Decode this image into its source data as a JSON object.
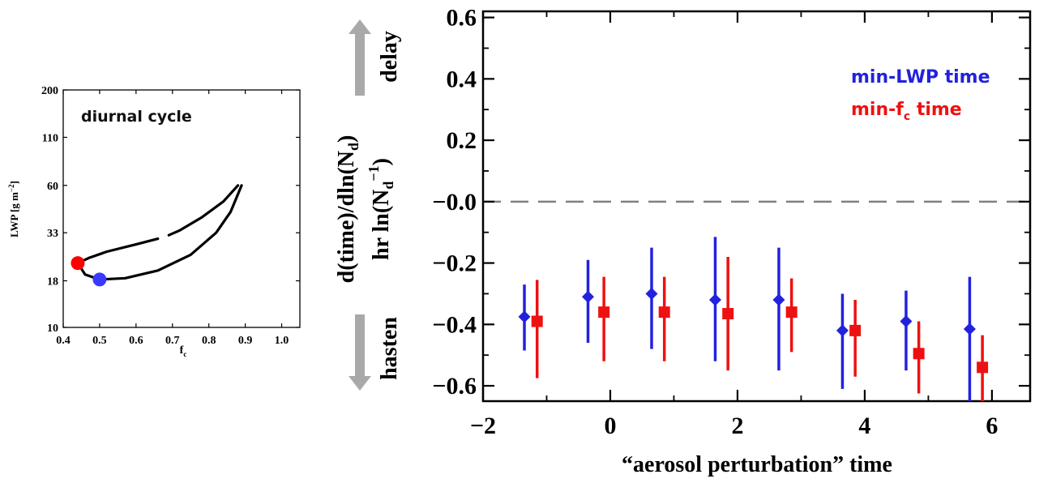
{
  "chart_data": [
    {
      "type": "line",
      "title": "",
      "annotation": "diurnal cycle",
      "xlabel_main": "f",
      "xlabel_sub": "c",
      "ylabel": "LWP [g m",
      "ylabel_sup": "−2",
      "ylabel_end": "]",
      "xlim": [
        0.4,
        1.05
      ],
      "ylim_log": [
        10,
        200
      ],
      "xticks": [
        {
          "v": 0.4,
          "label": "0.4"
        },
        {
          "v": 0.5,
          "label": "0.5"
        },
        {
          "v": 0.6,
          "label": "0.6"
        },
        {
          "v": 0.7,
          "label": "0.7"
        },
        {
          "v": 0.8,
          "label": "0.8"
        },
        {
          "v": 0.9,
          "label": "0.9"
        },
        {
          "v": 1.0,
          "label": "1.0"
        }
      ],
      "yticks": [
        {
          "v": 10,
          "label": "10"
        },
        {
          "v": 18,
          "label": "18"
        },
        {
          "v": 33,
          "label": "33"
        },
        {
          "v": 60,
          "label": "60"
        },
        {
          "v": 110,
          "label": "110"
        },
        {
          "v": 200,
          "label": "200"
        }
      ],
      "series": [
        {
          "color": "#000000",
          "segments": [
            [
              [
                0.88,
                60
              ],
              [
                0.84,
                49
              ],
              [
                0.78,
                40
              ],
              [
                0.72,
                34
              ],
              [
                0.69,
                32
              ]
            ],
            [
              [
                0.66,
                30.6
              ],
              [
                0.6,
                28.5
              ],
              [
                0.52,
                26
              ],
              [
                0.47,
                24
              ],
              [
                0.44,
                22.5
              ]
            ],
            [
              [
                0.44,
                22.5
              ],
              [
                0.46,
                19.5
              ],
              [
                0.5,
                18.3
              ],
              [
                0.57,
                18.6
              ],
              [
                0.66,
                20.5
              ],
              [
                0.75,
                25
              ],
              [
                0.82,
                33
              ],
              [
                0.86,
                43
              ],
              [
                0.89,
                60
              ]
            ]
          ]
        }
      ],
      "markers": [
        {
          "x": 0.44,
          "y": 22.5,
          "color": "#ff0000"
        },
        {
          "x": 0.5,
          "y": 18.3,
          "color": "#3a3aff"
        }
      ]
    },
    {
      "type": "scatter",
      "title": "",
      "xlabel": "“aerosol perturbation” time",
      "ylabel_line1": "d(time)/dln(N",
      "ylabel_line1_sub": "d",
      "ylabel_line1_end": ")",
      "ylabel_line2": "hr ln(N",
      "ylabel_line2_sub": "d",
      "ylabel_line2_sup": "−1",
      "ylabel_line2_end": ")",
      "xlim": [
        -2,
        6.6
      ],
      "ylim": [
        -0.65,
        0.62
      ],
      "xticks": [
        {
          "v": -2,
          "label": "−2"
        },
        {
          "v": 0,
          "label": "0"
        },
        {
          "v": 2,
          "label": "2"
        },
        {
          "v": 4,
          "label": "4"
        },
        {
          "v": 6,
          "label": "6"
        }
      ],
      "yticks": [
        {
          "v": 0.6,
          "label": "0.6"
        },
        {
          "v": 0.4,
          "label": "0.4"
        },
        {
          "v": 0.2,
          "label": "0.2"
        },
        {
          "v": 0.0,
          "label": "−0.0"
        },
        {
          "v": -0.2,
          "label": "−0.2"
        },
        {
          "v": -0.4,
          "label": "−0.4"
        },
        {
          "v": -0.6,
          "label": "−0.6"
        }
      ],
      "reference_line": {
        "y": 0.0,
        "color": "#808080",
        "style": "dashed"
      },
      "series": [
        {
          "name": "min-LWP time",
          "marker": "diamond",
          "color": "#2222dd",
          "points": [
            {
              "x": -1.35,
              "y": -0.375,
              "lo": -0.485,
              "hi": -0.27
            },
            {
              "x": -0.35,
              "y": -0.31,
              "lo": -0.46,
              "hi": -0.19
            },
            {
              "x": 0.65,
              "y": -0.3,
              "lo": -0.48,
              "hi": -0.15
            },
            {
              "x": 1.65,
              "y": -0.32,
              "lo": -0.52,
              "hi": -0.115
            },
            {
              "x": 2.65,
              "y": -0.32,
              "lo": -0.55,
              "hi": -0.15
            },
            {
              "x": 3.65,
              "y": -0.42,
              "lo": -0.61,
              "hi": -0.3
            },
            {
              "x": 4.65,
              "y": -0.39,
              "lo": -0.55,
              "hi": -0.29
            },
            {
              "x": 5.65,
              "y": -0.415,
              "lo": -0.65,
              "hi": -0.245
            }
          ]
        },
        {
          "name": "min-f",
          "name_sub": "c",
          "name_end": " time",
          "marker": "square",
          "color": "#ee1111",
          "points": [
            {
              "x": -1.15,
              "y": -0.39,
              "lo": -0.575,
              "hi": -0.255
            },
            {
              "x": -0.1,
              "y": -0.36,
              "lo": -0.52,
              "hi": -0.245
            },
            {
              "x": 0.85,
              "y": -0.36,
              "lo": -0.52,
              "hi": -0.245
            },
            {
              "x": 1.85,
              "y": -0.365,
              "lo": -0.55,
              "hi": -0.18
            },
            {
              "x": 2.85,
              "y": -0.36,
              "lo": -0.49,
              "hi": -0.25
            },
            {
              "x": 3.85,
              "y": -0.42,
              "lo": -0.57,
              "hi": -0.32
            },
            {
              "x": 4.85,
              "y": -0.495,
              "lo": -0.625,
              "hi": -0.39
            },
            {
              "x": 5.85,
              "y": -0.54,
              "lo": -0.65,
              "hi": -0.435
            }
          ]
        }
      ],
      "side_labels": {
        "top": "delay",
        "bottom": "hasten"
      },
      "arrow_color": "#a9a9a9"
    }
  ]
}
